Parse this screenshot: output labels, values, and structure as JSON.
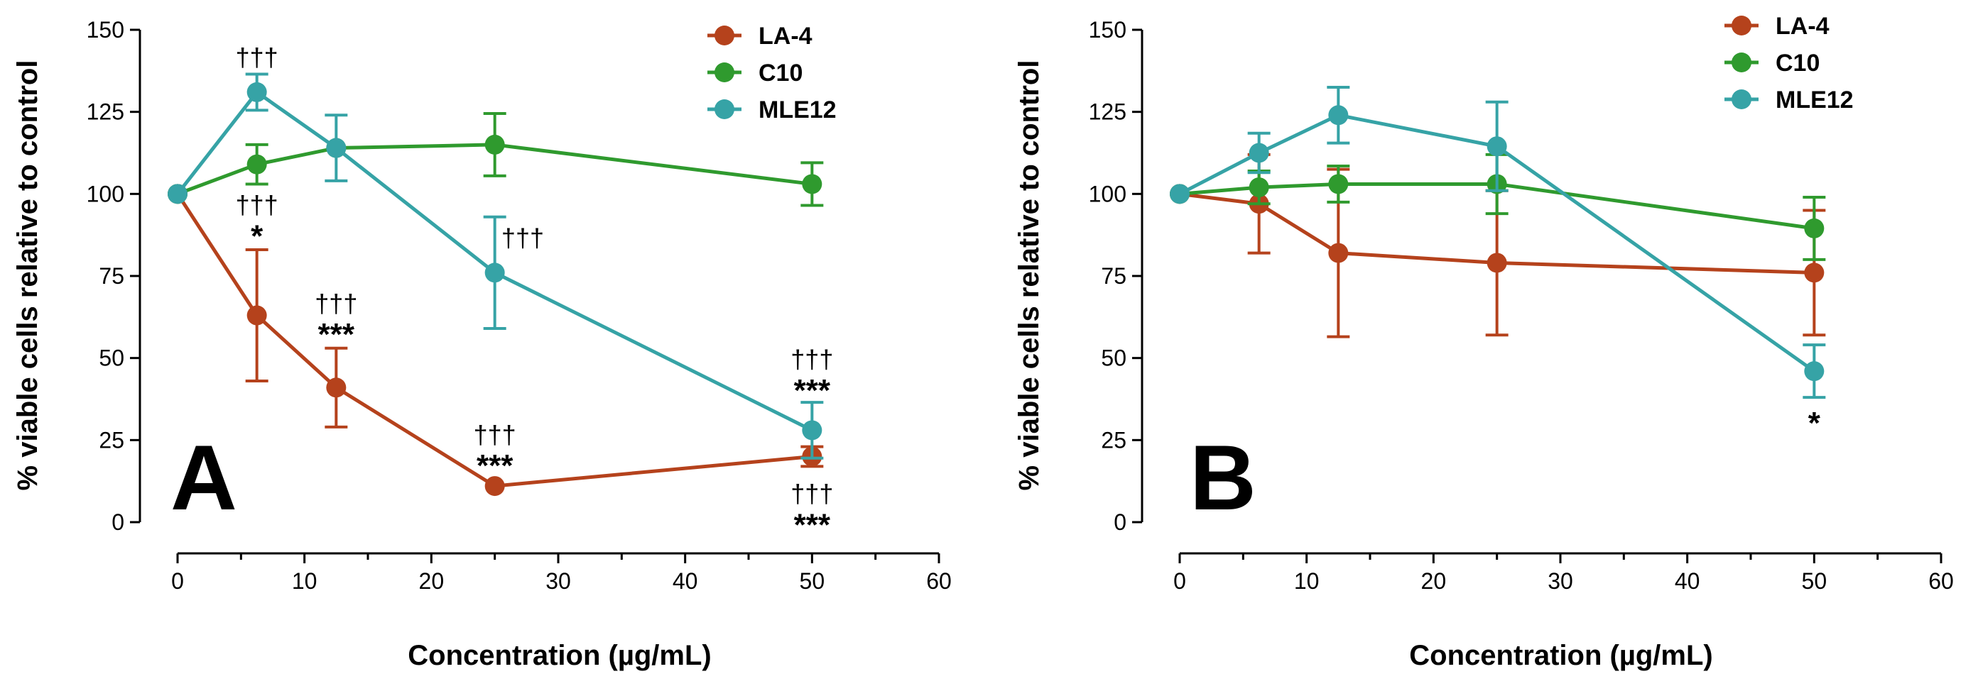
{
  "colors": {
    "LA-4": "#b5421c",
    "C10": "#2f9a2e",
    "MLE12": "#36a3a6",
    "axis": "#000000"
  },
  "chart_data": [
    {
      "type": "line",
      "panel": "A",
      "panel_label": "A",
      "xlabel": "Concentration (µg/mL)",
      "ylabel": "% viable cells relative to control",
      "xlim": [
        0,
        60
      ],
      "ylim": [
        0,
        150
      ],
      "xticks": [
        "0",
        "10",
        "20",
        "30",
        "40",
        "50",
        "60"
      ],
      "yticks": [
        "0",
        "25",
        "50",
        "75",
        "100",
        "125",
        "150"
      ],
      "legend": [
        "LA-4",
        "C10",
        "MLE12"
      ],
      "series": [
        {
          "name": "LA-4",
          "x": [
            0,
            6.25,
            12.5,
            25,
            50
          ],
          "values": [
            100,
            63,
            41,
            11,
            20
          ],
          "err": [
            0,
            20,
            12,
            0,
            3
          ]
        },
        {
          "name": "C10",
          "x": [
            0,
            6.25,
            12.5,
            25,
            50
          ],
          "values": [
            100,
            109,
            114,
            115,
            103
          ],
          "err": [
            0,
            6,
            0,
            9.5,
            6.5
          ]
        },
        {
          "name": "MLE12",
          "x": [
            0,
            6.25,
            12.5,
            25,
            50
          ],
          "values": [
            100,
            131,
            114,
            76,
            28
          ],
          "err": [
            0,
            5.5,
            10,
            17,
            8.5
          ]
        }
      ],
      "annotations": [
        {
          "x": 6.25,
          "y": 139,
          "text": "†††",
          "style": "dagger"
        },
        {
          "x": 6.25,
          "y": 94,
          "text": "†††",
          "style": "dagger"
        },
        {
          "x": 6.25,
          "y": 84,
          "text": "*",
          "style": "star"
        },
        {
          "x": 12.5,
          "y": 64,
          "text": "†††",
          "style": "dagger"
        },
        {
          "x": 12.5,
          "y": 54,
          "text": "***",
          "style": "star"
        },
        {
          "x": 27.2,
          "y": 84,
          "text": "†††",
          "style": "dagger"
        },
        {
          "x": 25,
          "y": 24,
          "text": "†††",
          "style": "dagger"
        },
        {
          "x": 25,
          "y": 14,
          "text": "***",
          "style": "star"
        },
        {
          "x": 50,
          "y": 47,
          "text": "†††",
          "style": "dagger"
        },
        {
          "x": 50,
          "y": 37,
          "text": "***",
          "style": "star"
        },
        {
          "x": 50,
          "y": 6,
          "text": "†††",
          "style": "dagger"
        },
        {
          "x": 50,
          "y": -4,
          "text": "***",
          "style": "star"
        }
      ]
    },
    {
      "type": "line",
      "panel": "B",
      "panel_label": "B",
      "xlabel": "Concentration (µg/mL)",
      "ylabel": "% viable cells relative to control",
      "xlim": [
        0,
        60
      ],
      "ylim": [
        0,
        150
      ],
      "xticks": [
        "0",
        "10",
        "20",
        "30",
        "40",
        "50",
        "60"
      ],
      "yticks": [
        "0",
        "25",
        "50",
        "75",
        "100",
        "125",
        "150"
      ],
      "legend": [
        "LA-4",
        "C10",
        "MLE12"
      ],
      "series": [
        {
          "name": "LA-4",
          "x": [
            0,
            6.25,
            12.5,
            25,
            50
          ],
          "values": [
            100,
            97,
            82,
            79,
            76
          ],
          "err": [
            0,
            15,
            25.5,
            22,
            19
          ]
        },
        {
          "name": "C10",
          "x": [
            0,
            6.25,
            12.5,
            25,
            50
          ],
          "values": [
            100,
            102,
            103,
            103,
            89.5
          ],
          "err": [
            0,
            5,
            5.5,
            9,
            9.5
          ]
        },
        {
          "name": "MLE12",
          "x": [
            0,
            6.25,
            12.5,
            25,
            50
          ],
          "values": [
            100,
            112.5,
            124,
            114.5,
            46
          ],
          "err": [
            0,
            6,
            8.5,
            13.5,
            8
          ]
        }
      ],
      "annotations": [
        {
          "x": 50,
          "y": 27,
          "text": "*",
          "style": "star"
        }
      ]
    }
  ]
}
